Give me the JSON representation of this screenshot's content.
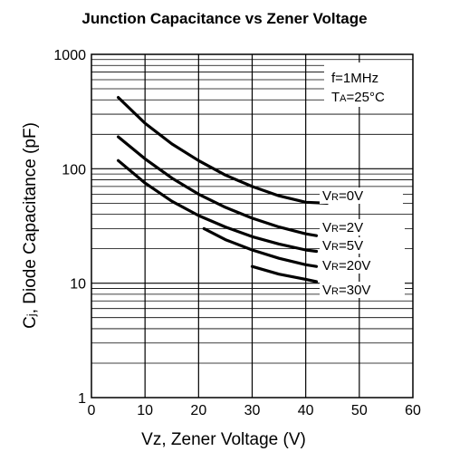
{
  "chart_data": {
    "type": "line",
    "title": "Junction Capacitance vs Zener Voltage",
    "xlabel": "Vz, Zener Voltage (V)",
    "ylabel_prefix": "C",
    "ylabel_sub": "j",
    "ylabel_rest": ", Diode Capacitance (pF)",
    "xlim": [
      0,
      60
    ],
    "ylim": [
      1,
      1000
    ],
    "y_scale": "log",
    "grid": true,
    "x_ticks": [
      "0",
      "10",
      "20",
      "30",
      "40",
      "50",
      "60"
    ],
    "y_ticks": [
      "1",
      "10",
      "100",
      "1000"
    ],
    "conditions": {
      "frequency": "f=1MHz",
      "temp_prefix": "T",
      "temp_sub": "A",
      "temp_value": "=25°C"
    },
    "series": [
      {
        "name_prefix": "V",
        "name_sub": "R",
        "name_value": "=0V",
        "x": [
          5,
          10,
          15,
          20,
          25,
          30,
          35,
          40,
          44
        ],
        "y": [
          420,
          250,
          165,
          118,
          88,
          70,
          58,
          51,
          50
        ]
      },
      {
        "name_prefix": "V",
        "name_sub": "R",
        "name_value": "=2V",
        "x": [
          5,
          10,
          15,
          20,
          25,
          30,
          35,
          40,
          42
        ],
        "y": [
          190,
          122,
          83,
          60,
          46,
          37,
          31,
          27,
          26
        ]
      },
      {
        "name_prefix": "V",
        "name_sub": "R",
        "name_value": "=5V",
        "x": [
          5,
          10,
          15,
          20,
          25,
          30,
          35,
          40,
          42
        ],
        "y": [
          118,
          75,
          52,
          39,
          31,
          25.5,
          22,
          19.5,
          19
        ]
      },
      {
        "name_prefix": "V",
        "name_sub": "R",
        "name_value": "=20V",
        "x": [
          21,
          25,
          30,
          35,
          40,
          42
        ],
        "y": [
          30,
          24,
          19.5,
          16.5,
          14.5,
          14
        ]
      },
      {
        "name_prefix": "V",
        "name_sub": "R",
        "name_value": "=30V",
        "x": [
          30,
          35,
          40,
          42
        ],
        "y": [
          14,
          12,
          10.8,
          10.3
        ]
      }
    ]
  }
}
